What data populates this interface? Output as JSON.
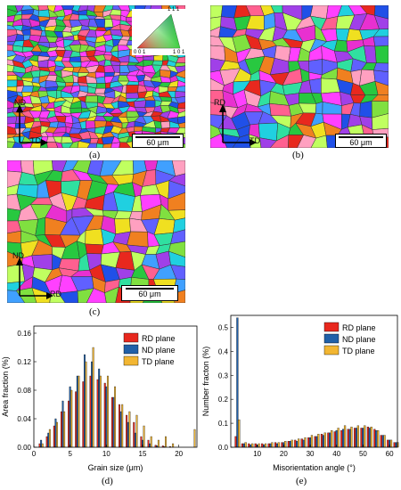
{
  "panels": {
    "a": {
      "label": "(a)",
      "axis_vertical": "ND",
      "axis_horizontal": "TD",
      "scale_bar": "60 μm",
      "ipf_labels": {
        "top": "1 1 1",
        "left": "0 0 1",
        "right": "1 0 1"
      }
    },
    "b": {
      "label": "(b)",
      "axis_vertical": "RD",
      "axis_horizontal": "TD",
      "scale_bar": "60 μm"
    },
    "c": {
      "label": "(c)",
      "axis_vertical": "ND",
      "axis_horizontal": "RD",
      "scale_bar": "60 μm"
    },
    "d": {
      "label": "(d)"
    },
    "e": {
      "label": "(e)"
    }
  },
  "colors": {
    "rd": "#e8281e",
    "nd": "#2060a8",
    "td": "#f2b632"
  },
  "chart_data": [
    {
      "type": "bar",
      "xlabel": "Grain size (μm)",
      "ylabel": "Area fraction (%)",
      "xlim": [
        0,
        22.5
      ],
      "ylim": [
        0,
        0.17
      ],
      "xticks": [
        0,
        5,
        10,
        15,
        20
      ],
      "yticks": [
        0.0,
        0.04,
        0.08,
        0.12,
        0.16
      ],
      "ytick_labels": [
        "0.00",
        "0.04",
        "0.08",
        "0.12",
        "0.16"
      ],
      "legend_position": "top-right",
      "x": [
        1,
        2,
        3,
        4,
        5,
        6,
        7,
        8,
        9,
        10,
        11,
        12,
        13,
        14,
        15,
        16,
        17,
        18,
        19,
        20,
        21,
        22
      ],
      "series": [
        {
          "name": "RD plane",
          "values": [
            0.005,
            0.015,
            0.03,
            0.05,
            0.065,
            0.078,
            0.092,
            0.1,
            0.095,
            0.09,
            0.07,
            0.06,
            0.045,
            0.035,
            0.015,
            0.01,
            0.003,
            0.002,
            0.001,
            0.0,
            0.0,
            0.0
          ]
        },
        {
          "name": "ND plane",
          "values": [
            0.01,
            0.02,
            0.04,
            0.065,
            0.085,
            0.1,
            0.13,
            0.12,
            0.11,
            0.085,
            0.07,
            0.05,
            0.035,
            0.02,
            0.01,
            0.005,
            0.002,
            0.001,
            0.0,
            0.0,
            0.0,
            0.0
          ]
        },
        {
          "name": "TD plane",
          "values": [
            0.005,
            0.025,
            0.035,
            0.05,
            0.08,
            0.1,
            0.12,
            0.14,
            0.1,
            0.1,
            0.085,
            0.06,
            0.05,
            0.045,
            0.03,
            0.015,
            0.01,
            0.015,
            0.005,
            0.0,
            0.0,
            0.025
          ]
        }
      ]
    },
    {
      "type": "bar",
      "xlabel": "Misorientation angle (°)",
      "ylabel": "Number fracton (%)",
      "xlim": [
        0,
        63
      ],
      "ylim": [
        0,
        0.55
      ],
      "xticks": [
        10,
        20,
        30,
        40,
        50,
        60
      ],
      "yticks": [
        0.0,
        0.1,
        0.2,
        0.3,
        0.4,
        0.5
      ],
      "ytick_labels": [
        "0.0",
        "0.1",
        "0.2",
        "0.3",
        "0.4",
        "0.5"
      ],
      "legend_position": "top-right",
      "x": [
        2.5,
        5,
        7.5,
        10,
        12.5,
        15,
        17.5,
        20,
        22.5,
        25,
        27.5,
        30,
        32.5,
        35,
        37.5,
        40,
        42.5,
        45,
        47.5,
        50,
        52.5,
        55,
        57.5,
        60,
        62.5
      ],
      "series": [
        {
          "name": "RD plane",
          "values": [
            0.045,
            0.015,
            0.015,
            0.015,
            0.015,
            0.015,
            0.02,
            0.02,
            0.025,
            0.03,
            0.035,
            0.04,
            0.045,
            0.055,
            0.06,
            0.065,
            0.07,
            0.075,
            0.08,
            0.08,
            0.085,
            0.075,
            0.05,
            0.03,
            0.02
          ]
        },
        {
          "name": "ND plane",
          "values": [
            0.54,
            0.015,
            0.01,
            0.01,
            0.01,
            0.015,
            0.015,
            0.02,
            0.025,
            0.025,
            0.03,
            0.04,
            0.045,
            0.05,
            0.06,
            0.07,
            0.075,
            0.075,
            0.08,
            0.08,
            0.08,
            0.07,
            0.05,
            0.03,
            0.02
          ]
        },
        {
          "name": "TD plane",
          "values": [
            0.115,
            0.02,
            0.015,
            0.015,
            0.015,
            0.02,
            0.02,
            0.025,
            0.03,
            0.035,
            0.04,
            0.05,
            0.055,
            0.06,
            0.07,
            0.08,
            0.09,
            0.085,
            0.09,
            0.09,
            0.085,
            0.07,
            0.05,
            0.03,
            0.02
          ]
        }
      ]
    }
  ]
}
